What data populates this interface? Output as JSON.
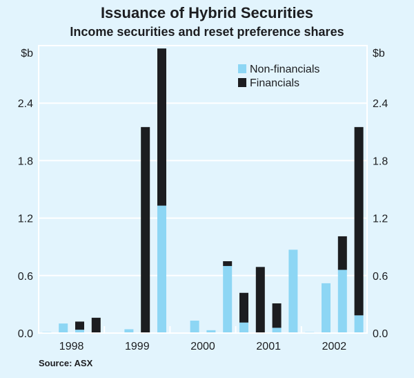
{
  "chart_data": {
    "type": "bar",
    "stacked": true,
    "title": "Issuance of Hybrid Securities",
    "subtitle": "Income securities and reset preference shares",
    "ylabel_left": "$b",
    "ylabel_right": "$b",
    "ylim": [
      0,
      3.0
    ],
    "yticks": [
      "0.0",
      "0.6",
      "1.2",
      "1.8",
      "2.4"
    ],
    "ytick_values": [
      0,
      0.6,
      1.2,
      1.8,
      2.4
    ],
    "year_labels": [
      "1998",
      "1999",
      "2000",
      "2001",
      "2002"
    ],
    "categories": [
      "1998 Q1",
      "1998 Q2",
      "1998 Q3",
      "1998 Q4",
      "1999 Q1",
      "1999 Q2",
      "1999 Q3",
      "1999 Q4",
      "2000 Q1",
      "2000 Q2",
      "2000 Q3",
      "2000 Q4",
      "2001 Q1",
      "2001 Q2",
      "2001 Q3",
      "2001 Q4",
      "2002 Q1",
      "2002 Q2",
      "2002 Q3",
      "2002 Q4"
    ],
    "series": [
      {
        "name": "Non-financials",
        "color": "#8dd6f4",
        "values": [
          0.01,
          0.1,
          0.035,
          0,
          0,
          0.04,
          0,
          1.33,
          0,
          0.13,
          0.03,
          0.7,
          0.11,
          0,
          0.055,
          0.87,
          0.01,
          0.52,
          0.66,
          0.185
        ]
      },
      {
        "name": "Financials",
        "color": "#1c1d20",
        "values": [
          0,
          0,
          0.085,
          0.16,
          0,
          0,
          2.15,
          1.64,
          0,
          0,
          0,
          0.05,
          0.31,
          0.69,
          0.255,
          0,
          0,
          0,
          0.35,
          1.965
        ]
      }
    ],
    "legend_position": "top-right",
    "grid": true,
    "source": "Source: ASX"
  }
}
